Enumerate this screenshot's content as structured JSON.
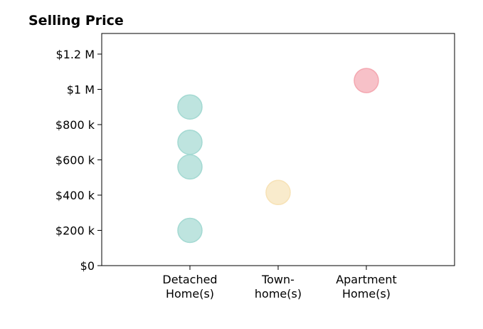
{
  "chart_data": {
    "type": "scatter",
    "title": "Selling Price",
    "categories": [
      "Detached\nHome(s)",
      "Town-\nhome(s)",
      "Apartment\nHome(s)"
    ],
    "colors": [
      "#a3d9d2",
      "#f7e2b6",
      "#f4a7b0"
    ],
    "x": [
      "Detached\nHome(s)",
      "Detached\nHome(s)",
      "Detached\nHome(s)",
      "Detached\nHome(s)",
      "Town-\nhome(s)",
      "Apartment\nHome(s)"
    ],
    "values": [
      900000,
      700000,
      560000,
      200000,
      415000,
      1050000
    ],
    "ylim": [
      0,
      1317000
    ],
    "yticks": [
      {
        "value": 0,
        "label": "$0"
      },
      {
        "value": 200000,
        "label": "$200 k"
      },
      {
        "value": 400000,
        "label": "$400 k"
      },
      {
        "value": 600000,
        "label": "$600 k"
      },
      {
        "value": 800000,
        "label": "$800 k"
      },
      {
        "value": 1000000,
        "label": "$1 M"
      },
      {
        "value": 1200000,
        "label": "$1.2 M"
      }
    ]
  }
}
